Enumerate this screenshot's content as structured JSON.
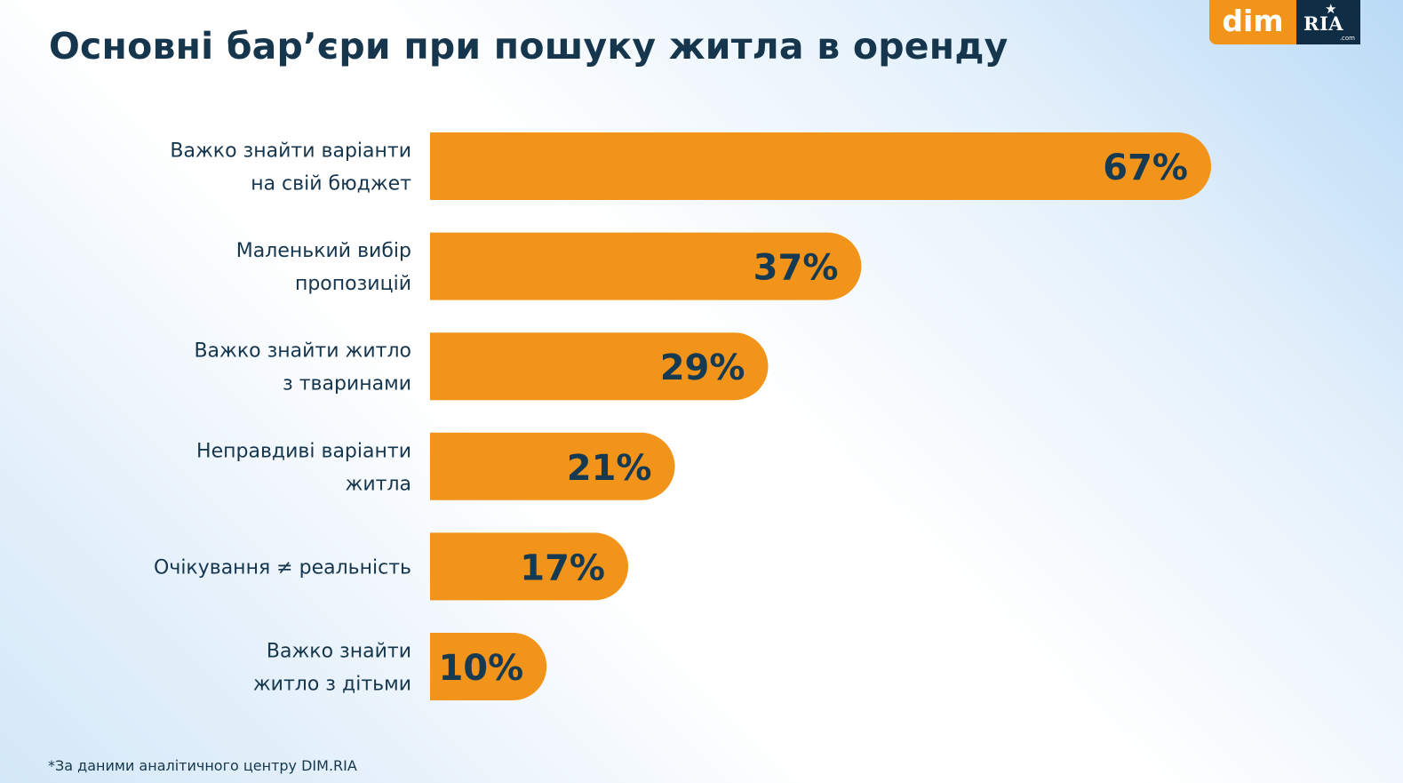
{
  "title": "Основні бар’єри при пошуку житла в оренду",
  "logo": {
    "dim": "dim",
    "ria": "RIA",
    "ria_suffix": ".com"
  },
  "footnote": "*За даними аналітичного центру DIM.RIA",
  "colors": {
    "bar": "#f2941a",
    "text": "#15364d",
    "value_text": "#163a52",
    "logo_dark": "#0f2e45"
  },
  "chart_data": {
    "type": "bar",
    "orientation": "horizontal",
    "categories": [
      [
        "Важко знайти варіанти",
        "на свій бюджет"
      ],
      [
        "Маленький вибір",
        "пропозицій"
      ],
      [
        "Важко знайти житло",
        "з тваринами"
      ],
      [
        "Неправдиві варіанти",
        "житла"
      ],
      [
        "Очікування ≠ реальність"
      ],
      [
        "Важко знайти",
        "житло з дітьми"
      ]
    ],
    "values": [
      67,
      37,
      29,
      21,
      17,
      10
    ],
    "value_labels": [
      "67%",
      "37%",
      "29%",
      "21%",
      "17%",
      "10%"
    ],
    "unit": "%",
    "xlim": [
      0,
      67
    ],
    "grid": false,
    "legend": "none"
  }
}
